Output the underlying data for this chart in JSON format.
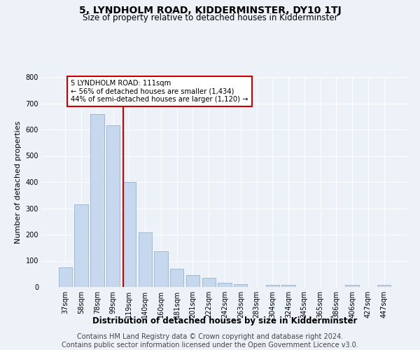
{
  "title": "5, LYNDHOLM ROAD, KIDDERMINSTER, DY10 1TJ",
  "subtitle": "Size of property relative to detached houses in Kidderminster",
  "xlabel": "Distribution of detached houses by size in Kidderminster",
  "ylabel": "Number of detached properties",
  "categories": [
    "37sqm",
    "58sqm",
    "78sqm",
    "99sqm",
    "119sqm",
    "140sqm",
    "160sqm",
    "181sqm",
    "201sqm",
    "222sqm",
    "242sqm",
    "263sqm",
    "283sqm",
    "304sqm",
    "324sqm",
    "345sqm",
    "365sqm",
    "386sqm",
    "406sqm",
    "427sqm",
    "447sqm"
  ],
  "values": [
    75,
    315,
    660,
    615,
    400,
    207,
    135,
    70,
    45,
    35,
    15,
    12,
    0,
    8,
    8,
    0,
    0,
    0,
    8,
    0,
    8
  ],
  "bar_color": "#c5d8ed",
  "bar_edgecolor": "#a0b8d0",
  "red_line_x": 3.62,
  "annotation_line1": "5 LYNDHOLM ROAD: 111sqm",
  "annotation_line2": "← 56% of detached houses are smaller (1,434)",
  "annotation_line3": "44% of semi-detached houses are larger (1,120) →",
  "annotation_box_color": "#ffffff",
  "annotation_box_edgecolor": "#cc0000",
  "red_line_color": "#cc0000",
  "ylim": [
    0,
    800
  ],
  "yticks": [
    0,
    100,
    200,
    300,
    400,
    500,
    600,
    700,
    800
  ],
  "footer_line1": "Contains HM Land Registry data © Crown copyright and database right 2024.",
  "footer_line2": "Contains public sector information licensed under the Open Government Licence v3.0.",
  "bg_color": "#edf2f8",
  "plot_bg_color": "#edf2f8",
  "title_fontsize": 10,
  "subtitle_fontsize": 8.5,
  "footer_fontsize": 7
}
